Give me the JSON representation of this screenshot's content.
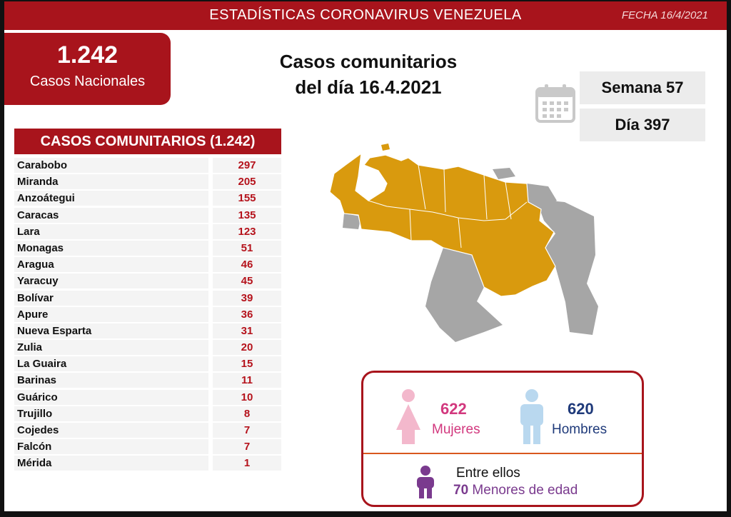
{
  "header": {
    "title": "ESTADÍSTICAS CORONAVIRUS VENEZUELA",
    "date": "FECHA 16/4/2021"
  },
  "national": {
    "count": "1.242",
    "label": "Casos Nacionales"
  },
  "main_title": {
    "line1": "Casos comunitarios",
    "line2": "del día 16.4.2021"
  },
  "calendar": {
    "icon": "calendar-icon",
    "week": "Semana 57",
    "day": "Día 397"
  },
  "table": {
    "header": "CASOS COMUNITARIOS (1.242)",
    "rows": [
      {
        "state": "Carabobo",
        "cases": "297"
      },
      {
        "state": "Miranda",
        "cases": "205"
      },
      {
        "state": "Anzoátegui",
        "cases": "155"
      },
      {
        "state": "Caracas",
        "cases": "135"
      },
      {
        "state": "Lara",
        "cases": "123"
      },
      {
        "state": "Monagas",
        "cases": "51"
      },
      {
        "state": "Aragua",
        "cases": "46"
      },
      {
        "state": "Yaracuy",
        "cases": "45"
      },
      {
        "state": "Bolívar",
        "cases": "39"
      },
      {
        "state": "Apure",
        "cases": "36"
      },
      {
        "state": "Nueva Esparta",
        "cases": "31"
      },
      {
        "state": "Zulia",
        "cases": "20"
      },
      {
        "state": "La Guaira",
        "cases": "15"
      },
      {
        "state": "Barinas",
        "cases": "11"
      },
      {
        "state": "Guárico",
        "cases": "10"
      },
      {
        "state": "Trujillo",
        "cases": "8"
      },
      {
        "state": "Cojedes",
        "cases": "7"
      },
      {
        "state": "Falcón",
        "cases": "7"
      },
      {
        "state": "Mérida",
        "cases": "1"
      }
    ]
  },
  "gender": {
    "women_count": "622",
    "women_label": "Mujeres",
    "men_count": "620",
    "men_label": "Hombres",
    "minors_intro": "Entre ellos",
    "minors_count": "70",
    "minors_label": "Menores de edad",
    "women_color": "#d2387e",
    "men_color": "#1f3a7a",
    "minors_color": "#7a3a8e"
  },
  "colors": {
    "brand_red": "#a8141c",
    "map_highlight": "#d99a0e",
    "map_gray": "#a6a6a6"
  }
}
